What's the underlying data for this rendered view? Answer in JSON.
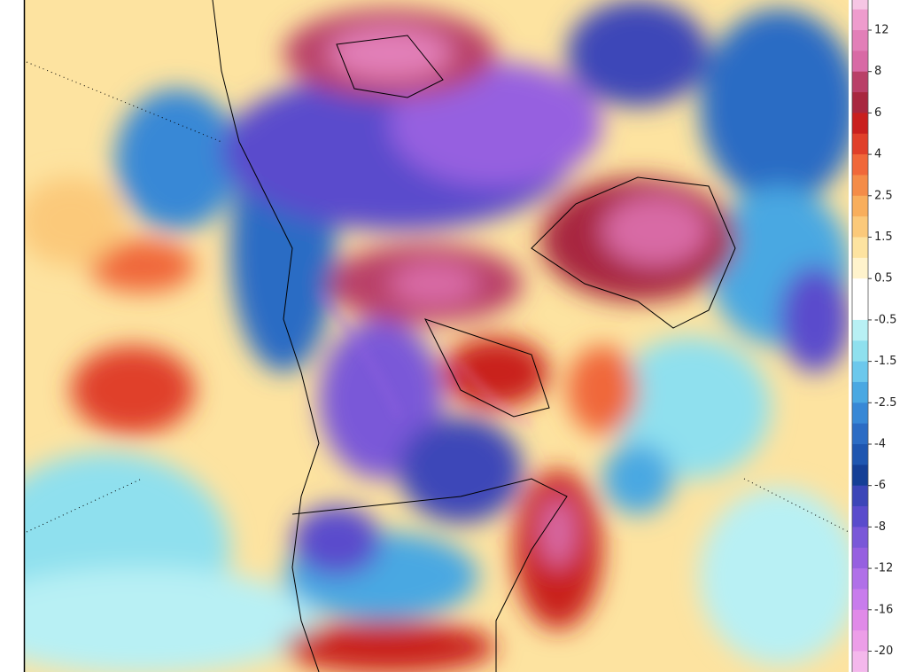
{
  "colorbar": {
    "labels": [
      "12",
      "8",
      "6",
      "4",
      "2.5",
      "1.5",
      "0.5",
      "-0.5",
      "-1.5",
      "-2.5",
      "-4",
      "-6",
      "-8",
      "-12",
      "-16",
      "-20"
    ],
    "colors": [
      "#f6c6e4",
      "#ee9ccd",
      "#e27fb8",
      "#d86aa5",
      "#b94068",
      "#a8283f",
      "#c9201e",
      "#e0402a",
      "#f0683a",
      "#f48c48",
      "#f8ae5c",
      "#fbc97a",
      "#fde3a0",
      "#fff3cc",
      "#ffffff",
      "#ffffff",
      "#b8f0f4",
      "#8fe0ee",
      "#6cc8ec",
      "#4aa8e2",
      "#3888d6",
      "#2c6cc4",
      "#1f56b0",
      "#153f96",
      "#3c46b8",
      "#5a4ccc",
      "#7a58d8",
      "#9660e0",
      "#b070e8",
      "#c87cec",
      "#e08ae8",
      "#ec9ee8",
      "#f4b8ec",
      "#f8cff2"
    ]
  }
}
